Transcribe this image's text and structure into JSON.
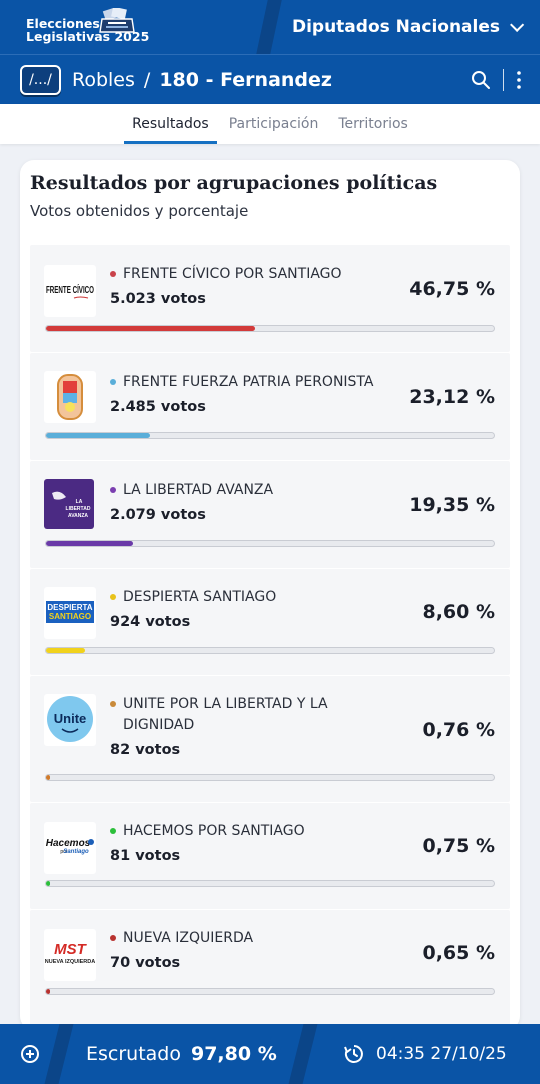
{
  "header": {
    "brand_line1": "Elecciones",
    "brand_line2": "Legislativas 2025",
    "election_type": "Diputados Nacionales"
  },
  "breadcrumb": {
    "back_label": "/.../",
    "level": "Robles",
    "separator": "/",
    "current": "180 - Fernandez"
  },
  "tabs": [
    {
      "label": "Resultados",
      "active": true
    },
    {
      "label": "Participación",
      "active": false
    },
    {
      "label": "Territorios",
      "active": false
    }
  ],
  "results": {
    "title": "Resultados por agrupaciones políticas",
    "subtitle": "Votos obtenidos y porcentaje",
    "parties": [
      {
        "name": "FRENTE CÍVICO POR SANTIAGO",
        "votes": "5.023 votos",
        "pct": "46,75 %",
        "share": 46.75,
        "color": "#d23a3a"
      },
      {
        "name": "FRENTE FUERZA PATRIA PERONISTA",
        "votes": "2.485 votos",
        "pct": "23,12 %",
        "share": 23.12,
        "color": "#5aaed9"
      },
      {
        "name": "LA LIBERTAD AVANZA",
        "votes": "2.079 votos",
        "pct": "19,35 %",
        "share": 19.35,
        "color": "#6a3aa8"
      },
      {
        "name": "DESPIERTA SANTIAGO",
        "votes": "924 votos",
        "pct": "8,60 %",
        "share": 8.6,
        "color": "#f1d21c"
      },
      {
        "name": "UNITE POR LA LIBERTAD Y LA DIGNIDAD",
        "votes": "82 votos",
        "pct": "0,76 %",
        "share": 0.76,
        "color": "#d07a2a"
      },
      {
        "name": "HACEMOS POR SANTIAGO",
        "votes": "81 votos",
        "pct": "0,75 %",
        "share": 0.75,
        "color": "#2bbf3a"
      },
      {
        "name": "NUEVA IZQUIERDA",
        "votes": "70 votos",
        "pct": "0,65 %",
        "share": 0.65,
        "color": "#b8322f"
      }
    ]
  },
  "logos": {
    "frente_civico": "FRENTE CÍVICO",
    "libertad": [
      "LA",
      "LIBERTAD",
      "AVANZA"
    ],
    "despierta": [
      "DESPIERTA",
      "SANTIAGO"
    ],
    "unite": "Unite",
    "hacemos": [
      "Hacemos",
      "por",
      "Santiago"
    ],
    "mst": [
      "MST",
      "NUEVA IZQUIERDA"
    ]
  },
  "footer": {
    "scrutiny_label": "Escrutado",
    "scrutiny_value": "97,80 %",
    "timestamp": "04:35 27/10/25"
  }
}
